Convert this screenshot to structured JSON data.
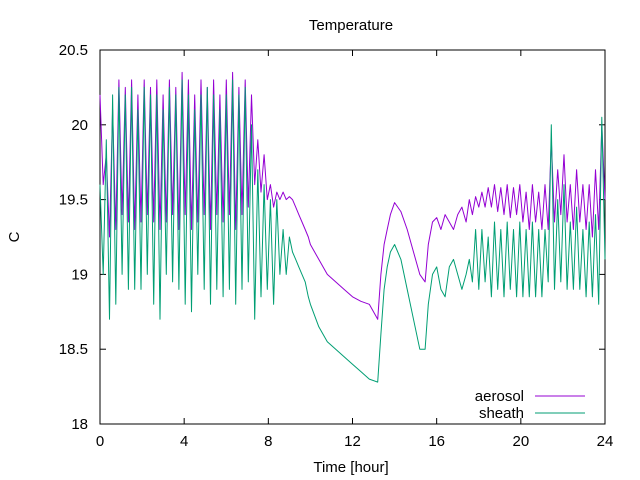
{
  "chart_data": {
    "type": "line",
    "title": "Temperature",
    "xlabel": "Time [hour]",
    "ylabel": "C",
    "xlim": [
      0,
      24
    ],
    "ylim": [
      18,
      20.5
    ],
    "xticks": [
      0,
      4,
      8,
      12,
      16,
      20,
      24
    ],
    "yticks": [
      18,
      18.5,
      19,
      19.5,
      20,
      20.5
    ],
    "xtick_labels": [
      "0",
      "4",
      "8",
      "12",
      "16",
      "20",
      "24"
    ],
    "ytick_labels": [
      "18",
      "18.5",
      "19",
      "19.5",
      "20",
      "20.5"
    ],
    "grid": false,
    "legend_position": "bottom-right",
    "series": [
      {
        "name": "aerosol",
        "color": "#9400d3",
        "x": [
          0.0,
          0.15,
          0.3,
          0.45,
          0.6,
          0.75,
          0.9,
          1.05,
          1.2,
          1.35,
          1.5,
          1.65,
          1.8,
          1.95,
          2.1,
          2.25,
          2.4,
          2.55,
          2.7,
          2.85,
          3.0,
          3.15,
          3.3,
          3.45,
          3.6,
          3.75,
          3.9,
          4.05,
          4.2,
          4.35,
          4.5,
          4.65,
          4.8,
          4.95,
          5.1,
          5.25,
          5.4,
          5.55,
          5.7,
          5.85,
          6.0,
          6.15,
          6.3,
          6.45,
          6.6,
          6.75,
          6.9,
          7.05,
          7.2,
          7.35,
          7.5,
          7.65,
          7.8,
          7.95,
          8.1,
          8.25,
          8.4,
          8.55,
          8.7,
          8.85,
          9.0,
          9.15,
          9.3,
          9.45,
          9.6,
          9.75,
          9.9,
          10.0,
          10.4,
          10.8,
          11.2,
          11.6,
          12.0,
          12.4,
          12.8,
          13.2,
          13.35,
          13.5,
          13.65,
          13.8,
          14.0,
          14.3,
          14.6,
          14.9,
          15.2,
          15.45,
          15.6,
          15.8,
          16.0,
          16.2,
          16.4,
          16.6,
          16.8,
          17.0,
          17.2,
          17.4,
          17.55,
          17.7,
          17.85,
          18.0,
          18.15,
          18.3,
          18.45,
          18.6,
          18.75,
          18.9,
          19.05,
          19.2,
          19.35,
          19.5,
          19.65,
          19.8,
          19.95,
          20.1,
          20.25,
          20.4,
          20.55,
          20.7,
          20.85,
          21.0,
          21.15,
          21.3,
          21.45,
          21.6,
          21.75,
          21.9,
          22.05,
          22.2,
          22.35,
          22.5,
          22.65,
          22.8,
          22.95,
          23.1,
          23.25,
          23.4,
          23.55,
          23.7,
          23.85,
          24.0
        ],
        "y": [
          20.2,
          19.6,
          19.8,
          19.25,
          20.1,
          19.3,
          20.3,
          19.4,
          20.25,
          19.35,
          20.3,
          19.3,
          20.2,
          19.35,
          20.3,
          19.4,
          20.25,
          19.35,
          20.3,
          19.3,
          20.2,
          19.35,
          20.3,
          19.4,
          20.25,
          19.3,
          20.35,
          19.4,
          20.3,
          19.3,
          20.2,
          19.35,
          20.3,
          19.4,
          20.25,
          19.3,
          20.3,
          19.4,
          20.2,
          19.35,
          20.3,
          19.4,
          20.35,
          19.3,
          20.25,
          19.4,
          20.3,
          19.45,
          20.2,
          19.6,
          19.9,
          19.55,
          19.8,
          19.5,
          19.6,
          19.45,
          19.55,
          19.5,
          19.55,
          19.5,
          19.52,
          19.5,
          19.45,
          19.4,
          19.35,
          19.3,
          19.25,
          19.2,
          19.1,
          19.0,
          18.95,
          18.9,
          18.85,
          18.82,
          18.8,
          18.7,
          19.0,
          19.2,
          19.3,
          19.4,
          19.48,
          19.42,
          19.3,
          19.15,
          19.0,
          18.95,
          19.2,
          19.35,
          19.38,
          19.3,
          19.4,
          19.35,
          19.3,
          19.4,
          19.45,
          19.35,
          19.5,
          19.4,
          19.52,
          19.45,
          19.55,
          19.45,
          19.58,
          19.45,
          19.6,
          19.42,
          19.58,
          19.4,
          19.6,
          19.38,
          19.58,
          19.4,
          19.6,
          19.35,
          19.55,
          19.3,
          19.6,
          19.35,
          19.55,
          19.3,
          19.6,
          19.3,
          19.9,
          19.35,
          19.7,
          19.4,
          19.8,
          19.35,
          19.6,
          19.3,
          19.7,
          19.35,
          19.6,
          19.3,
          19.6,
          19.25,
          19.7,
          19.3,
          20.0,
          19.5
        ]
      },
      {
        "name": "sheath",
        "color": "#009e73",
        "x": [
          0.0,
          0.15,
          0.3,
          0.45,
          0.6,
          0.75,
          0.9,
          1.05,
          1.2,
          1.35,
          1.5,
          1.65,
          1.8,
          1.95,
          2.1,
          2.25,
          2.4,
          2.55,
          2.7,
          2.85,
          3.0,
          3.15,
          3.3,
          3.45,
          3.6,
          3.75,
          3.9,
          4.05,
          4.2,
          4.35,
          4.5,
          4.65,
          4.8,
          4.95,
          5.1,
          5.25,
          5.4,
          5.55,
          5.7,
          5.85,
          6.0,
          6.15,
          6.3,
          6.45,
          6.6,
          6.75,
          6.9,
          7.05,
          7.2,
          7.35,
          7.5,
          7.65,
          7.8,
          7.95,
          8.1,
          8.25,
          8.4,
          8.55,
          8.7,
          8.85,
          9.0,
          9.15,
          9.3,
          9.45,
          9.6,
          9.75,
          9.9,
          10.0,
          10.4,
          10.8,
          11.2,
          11.6,
          12.0,
          12.4,
          12.8,
          13.2,
          13.35,
          13.5,
          13.65,
          13.8,
          14.0,
          14.3,
          14.6,
          14.9,
          15.2,
          15.45,
          15.6,
          15.8,
          16.0,
          16.2,
          16.4,
          16.6,
          16.8,
          17.0,
          17.2,
          17.4,
          17.55,
          17.7,
          17.85,
          18.0,
          18.15,
          18.3,
          18.45,
          18.6,
          18.75,
          18.9,
          19.05,
          19.2,
          19.35,
          19.5,
          19.65,
          19.8,
          19.95,
          20.1,
          20.25,
          20.4,
          20.55,
          20.7,
          20.85,
          21.0,
          21.15,
          21.3,
          21.45,
          21.6,
          21.75,
          21.9,
          22.05,
          22.2,
          22.35,
          22.5,
          22.65,
          22.8,
          22.95,
          23.1,
          23.25,
          23.4,
          23.55,
          23.7,
          23.85,
          24.0
        ],
        "y": [
          19.6,
          19.0,
          19.9,
          18.7,
          20.2,
          18.8,
          20.25,
          19.0,
          20.2,
          18.9,
          20.25,
          18.9,
          20.1,
          18.9,
          20.25,
          19.0,
          20.2,
          18.8,
          20.2,
          18.7,
          20.1,
          19.0,
          20.25,
          18.95,
          20.2,
          18.9,
          20.3,
          18.8,
          20.2,
          18.75,
          20.1,
          19.0,
          20.2,
          18.9,
          20.25,
          18.8,
          20.2,
          18.9,
          20.1,
          18.85,
          20.2,
          18.9,
          20.3,
          18.8,
          20.2,
          18.9,
          20.25,
          18.95,
          20.0,
          18.7,
          19.7,
          18.85,
          19.6,
          18.9,
          19.5,
          18.8,
          19.5,
          19.0,
          19.3,
          19.0,
          19.25,
          19.15,
          19.1,
          19.05,
          19.0,
          18.95,
          18.85,
          18.8,
          18.65,
          18.55,
          18.5,
          18.45,
          18.4,
          18.35,
          18.3,
          18.28,
          18.6,
          18.9,
          19.05,
          19.15,
          19.2,
          19.1,
          18.9,
          18.7,
          18.5,
          18.5,
          18.8,
          19.0,
          19.05,
          18.9,
          18.85,
          19.05,
          19.1,
          19.0,
          18.9,
          19.0,
          19.1,
          18.95,
          19.3,
          18.9,
          19.3,
          18.95,
          19.25,
          18.85,
          19.35,
          18.9,
          19.3,
          18.85,
          19.35,
          18.9,
          19.3,
          18.85,
          19.35,
          18.85,
          19.3,
          18.85,
          19.35,
          18.85,
          19.3,
          18.85,
          19.3,
          18.95,
          20.0,
          18.9,
          19.5,
          18.95,
          19.6,
          18.9,
          19.35,
          18.9,
          19.45,
          18.9,
          19.3,
          18.85,
          19.35,
          18.85,
          19.4,
          18.8,
          20.05,
          19.1
        ]
      }
    ]
  }
}
